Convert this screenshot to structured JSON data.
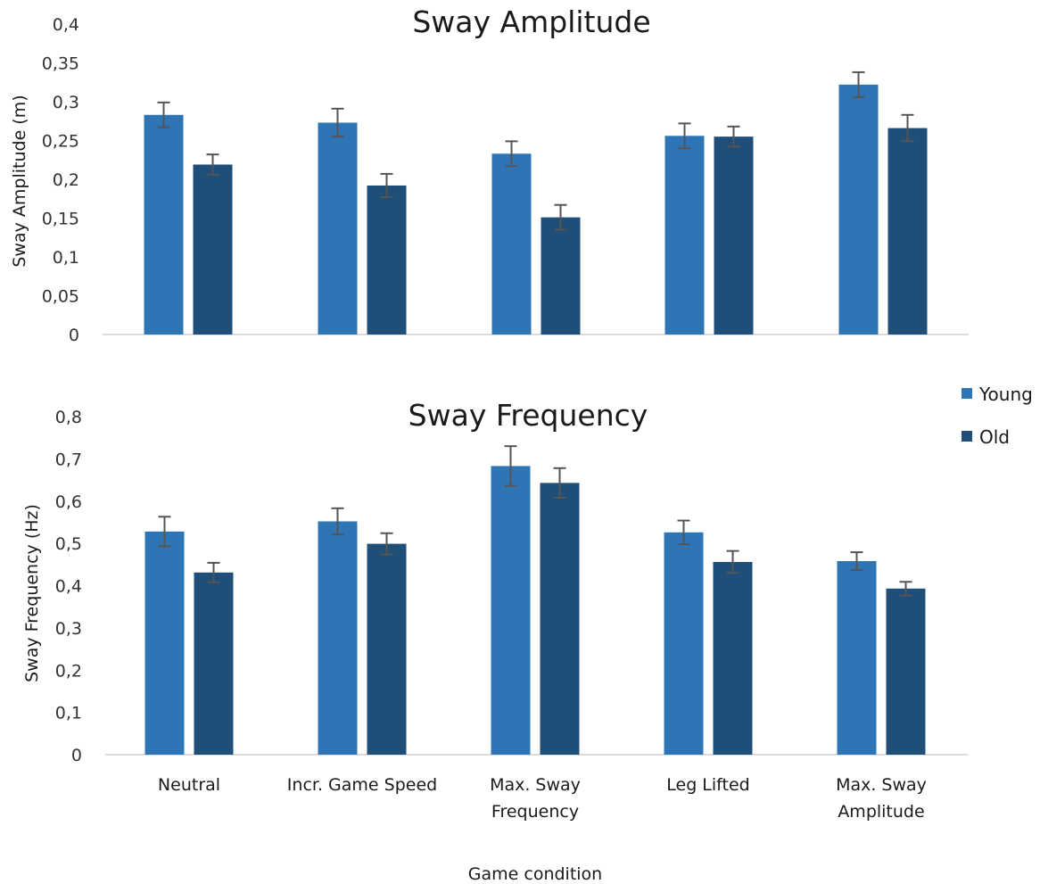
{
  "chart_data": [
    {
      "type": "bar",
      "title": "Sway Amplitude",
      "ylabel": "Sway Amplitude (m)",
      "xlabel": "",
      "ylim": [
        0,
        0.4
      ],
      "yticks": [
        "0",
        "0,05",
        "0,1",
        "0,15",
        "0,2",
        "0,25",
        "0,3",
        "0,35",
        "0,4"
      ],
      "categories": [
        "Neutral",
        "Incr. Game Speed",
        "Max. Sway Frequency",
        "Leg Lifted",
        "Max. Sway Amplitude"
      ],
      "series": [
        {
          "name": "Young",
          "color": "#2e75b6",
          "values": [
            0.283,
            0.273,
            0.233,
            0.256,
            0.322
          ],
          "errors": [
            0.016,
            0.018,
            0.016,
            0.016,
            0.016
          ]
        },
        {
          "name": "Old",
          "color": "#1f4e79",
          "values": [
            0.219,
            0.192,
            0.151,
            0.255,
            0.266
          ],
          "errors": [
            0.013,
            0.015,
            0.016,
            0.013,
            0.017
          ]
        }
      ],
      "grid": false,
      "legend": "right"
    },
    {
      "type": "bar",
      "title": "Sway Frequency",
      "ylabel": "Sway Frequency (Hz)",
      "xlabel": "Game condition",
      "ylim": [
        0,
        0.8
      ],
      "yticks": [
        "0",
        "0,1",
        "0,2",
        "0,3",
        "0,4",
        "0,5",
        "0,6",
        "0,7",
        "0,8"
      ],
      "categories": [
        "Neutral",
        "Incr. Game Speed",
        "Max. Sway Frequency",
        "Leg Lifted",
        "Max. Sway Amplitude"
      ],
      "category_lines": [
        [
          "Neutral"
        ],
        [
          "Incr. Game Speed"
        ],
        [
          "Max. Sway",
          "Frequency"
        ],
        [
          "Leg Lifted"
        ],
        [
          "Max. Sway",
          "Amplitude"
        ]
      ],
      "series": [
        {
          "name": "Young",
          "color": "#2e75b6",
          "values": [
            0.528,
            0.552,
            0.683,
            0.526,
            0.458
          ],
          "errors": [
            0.035,
            0.031,
            0.047,
            0.028,
            0.021
          ]
        },
        {
          "name": "Old",
          "color": "#1f4e79",
          "values": [
            0.431,
            0.499,
            0.643,
            0.456,
            0.393
          ],
          "errors": [
            0.023,
            0.025,
            0.035,
            0.026,
            0.016
          ]
        }
      ],
      "grid": false,
      "legend": "right"
    }
  ],
  "legend": [
    {
      "name": "Young",
      "color": "#2e75b6"
    },
    {
      "name": "Old",
      "color": "#1f4e79"
    }
  ]
}
